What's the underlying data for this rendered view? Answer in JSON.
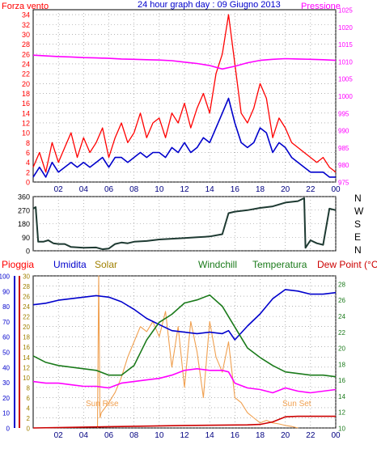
{
  "colors": {
    "red": "#ff0000",
    "blue": "#0000cc",
    "magenta": "#ff00ff",
    "navy": "#000080",
    "green": "#1a7a1a",
    "orange": "#f0a050",
    "olive": "#a08000",
    "darkslate": "#1e3a32",
    "darkred": "#cc0000"
  },
  "top_panel": {
    "left_label": "Forza vento",
    "center_title": "24 hour graph day : 09 Giugno 2013",
    "right_label": "Pressione"
  },
  "middle_panel": {
    "compass": [
      "N",
      "W",
      "S",
      "E",
      "N"
    ]
  },
  "bottom_panel": {
    "labels": {
      "pioggia": "Pioggia",
      "umidita": "Umidita",
      "solar": "Solar",
      "windchill": "Windchill",
      "temperatura": "Temperatura",
      "dewpoint": "Dew Point (°C)"
    },
    "annotations": {
      "sunrise": "Sun Rise",
      "sunset": "Sun Set"
    }
  },
  "chart_data": [
    {
      "type": "line",
      "name": "wind_and_pressure",
      "title": "24 hour graph day : 09 Giugno 2013",
      "x_ticks": [
        "02",
        "04",
        "06",
        "08",
        "10",
        "12",
        "14",
        "16",
        "18",
        "20",
        "22",
        "00"
      ],
      "y_left_ticks": [
        0,
        2,
        4,
        6,
        8,
        10,
        12,
        14,
        16,
        18,
        20,
        22,
        24,
        26,
        28,
        30,
        32,
        34
      ],
      "y_left_range": [
        0,
        35
      ],
      "y_right_ticks": [
        975,
        980,
        985,
        990,
        995,
        1000,
        1005,
        1010,
        1015,
        1020,
        1025
      ],
      "y_right_range": [
        975,
        1025
      ],
      "grid": true,
      "series": [
        {
          "color": "#ff0000",
          "x": [
            0,
            0.5,
            1,
            1.5,
            2,
            2.5,
            3,
            3.5,
            4,
            4.5,
            5,
            5.5,
            6,
            6.5,
            7,
            7.5,
            8,
            8.5,
            9,
            9.5,
            10,
            10.5,
            11,
            11.5,
            12,
            12.5,
            13,
            13.5,
            14,
            14.5,
            15,
            15.5,
            16,
            16.5,
            17,
            17.5,
            18,
            18.5,
            19,
            19.5,
            20,
            20.5,
            21,
            21.5,
            22,
            22.5,
            23,
            23.5,
            24
          ],
          "values": [
            3,
            6,
            2,
            8,
            4,
            7,
            10,
            5,
            9,
            6,
            8,
            11,
            5,
            9,
            12,
            8,
            10,
            14,
            9,
            12,
            13,
            9,
            14,
            12,
            16,
            11,
            15,
            18,
            14,
            22,
            26,
            34,
            24,
            14,
            12,
            15,
            20,
            17,
            9,
            13,
            11,
            8,
            7,
            6,
            5,
            4,
            5,
            3,
            2
          ]
        },
        {
          "color": "#0000cc",
          "x": [
            0,
            0.5,
            1,
            1.5,
            2,
            2.5,
            3,
            3.5,
            4,
            4.5,
            5,
            5.5,
            6,
            6.5,
            7,
            7.5,
            8,
            8.5,
            9,
            9.5,
            10,
            10.5,
            11,
            11.5,
            12,
            12.5,
            13,
            13.5,
            14,
            14.5,
            15,
            15.5,
            16,
            16.5,
            17,
            17.5,
            18,
            18.5,
            19,
            19.5,
            20,
            20.5,
            21,
            21.5,
            22,
            22.5,
            23,
            23.5,
            24
          ],
          "values": [
            1,
            3,
            1,
            4,
            2,
            3,
            4,
            3,
            4,
            3,
            4,
            5,
            3,
            5,
            5,
            4,
            5,
            6,
            5,
            6,
            6,
            5,
            7,
            6,
            8,
            6,
            7,
            9,
            8,
            11,
            14,
            17,
            12,
            8,
            7,
            8,
            11,
            10,
            6,
            8,
            7,
            5,
            4,
            3,
            2,
            2,
            2,
            1,
            1
          ]
        },
        {
          "color": "#ff00ff",
          "x": [
            0,
            1,
            2,
            3,
            4,
            5,
            6,
            7,
            8,
            9,
            10,
            11,
            12,
            13,
            14,
            15,
            16,
            17,
            18,
            19,
            20,
            21,
            22,
            23,
            24
          ],
          "values": [
            1011.8,
            1011.6,
            1011.4,
            1011.3,
            1011.1,
            1011.0,
            1010.9,
            1010.7,
            1010.6,
            1010.5,
            1010.4,
            1010.2,
            1009.8,
            1009.4,
            1008.8,
            1007.8,
            1008.6,
            1009.6,
            1010.3,
            1010.6,
            1010.8,
            1010.7,
            1010.6,
            1010.5,
            1010.3
          ]
        }
      ]
    },
    {
      "type": "line",
      "name": "wind_direction",
      "x_ticks": [
        "02",
        "04",
        "06",
        "08",
        "10",
        "12",
        "14",
        "16",
        "18",
        "20",
        "22",
        "00"
      ],
      "y_ticks": [
        0,
        90,
        180,
        270,
        360
      ],
      "y_range": [
        0,
        360
      ],
      "grid": true,
      "series": [
        {
          "color": "#1e3a32",
          "x": [
            0,
            0.2,
            0.4,
            0.8,
            1.2,
            1.6,
            2,
            2.5,
            3,
            4,
            5,
            5.5,
            6,
            6.5,
            7,
            7.5,
            8,
            9,
            10,
            11,
            12,
            13,
            14,
            15,
            15.5,
            16,
            17,
            18,
            19,
            20,
            21,
            21.5,
            21.6,
            22,
            22.5,
            23,
            23.5,
            24
          ],
          "values": [
            280,
            290,
            60,
            60,
            70,
            50,
            45,
            45,
            25,
            20,
            22,
            10,
            15,
            45,
            55,
            50,
            60,
            65,
            75,
            80,
            85,
            90,
            95,
            110,
            250,
            260,
            270,
            285,
            295,
            320,
            330,
            350,
            20,
            70,
            50,
            40,
            280,
            270
          ]
        }
      ]
    },
    {
      "type": "line",
      "name": "rain_humidity_solar_temperature",
      "x_ticks": [
        "02",
        "04",
        "06",
        "08",
        "10",
        "12",
        "14",
        "16",
        "18",
        "20",
        "22",
        "00"
      ],
      "y_far_left_ticks": [
        0,
        10,
        20,
        30,
        40,
        50,
        60,
        70,
        80,
        90,
        100
      ],
      "y_left_ticks": [
        0,
        2,
        4,
        6,
        8,
        10,
        12,
        14,
        16,
        18,
        20,
        22,
        24,
        26,
        28,
        30
      ],
      "y_right_ticks": [
        10,
        12,
        14,
        16,
        18,
        20,
        22,
        24,
        26,
        28
      ],
      "y_temperature_range": [
        10,
        29
      ],
      "y_humidity_range": [
        0,
        100
      ],
      "grid": true,
      "series": [
        {
          "color": "#0000cc",
          "x": [
            0,
            1,
            2,
            3,
            4,
            5,
            6,
            7,
            8,
            9,
            10,
            11,
            12,
            13,
            14,
            15,
            15.5,
            16,
            17,
            18,
            19,
            20,
            21,
            22,
            23,
            24
          ],
          "values": [
            81,
            82,
            84,
            85,
            86,
            87,
            86,
            83,
            78,
            72,
            68,
            64,
            63,
            62,
            63,
            62,
            64,
            58,
            67,
            75,
            85,
            91,
            90,
            88,
            88,
            89
          ]
        },
        {
          "color": "#1a7a1a",
          "x": [
            0,
            1,
            2,
            3,
            4,
            5,
            6,
            7,
            8,
            9,
            10,
            11,
            12,
            13,
            14,
            15,
            16,
            17,
            18,
            19,
            20,
            21,
            22,
            23,
            24
          ],
          "values": [
            19,
            18.2,
            17.8,
            17.6,
            17.4,
            17.2,
            16.6,
            16.6,
            17.8,
            21,
            23.2,
            24.2,
            25.6,
            26,
            26.6,
            25.2,
            22.6,
            20,
            18.8,
            17.8,
            17,
            16.8,
            16.6,
            16.6,
            16.4
          ]
        },
        {
          "color": "#ff00ff",
          "x": [
            0,
            1,
            2,
            3,
            4,
            5,
            6,
            7,
            8,
            9,
            10,
            11,
            12,
            13,
            14,
            15,
            15.5,
            16,
            17,
            18,
            19,
            20,
            21,
            22,
            23,
            24
          ],
          "values": [
            15.8,
            15.6,
            15.6,
            15.4,
            15.2,
            15.2,
            15.0,
            15.6,
            15.8,
            16.0,
            16.2,
            16.6,
            17.2,
            17.4,
            17.2,
            17.2,
            17.0,
            15.6,
            15.0,
            14.8,
            14.4,
            15.0,
            14.6,
            14.4,
            14.6,
            14.8
          ]
        },
        {
          "color": "#f0a050",
          "x": [
            5.1,
            5.2,
            5.3,
            5.4,
            6,
            6.5,
            7,
            7.5,
            8,
            8.5,
            9,
            9.5,
            10,
            10.5,
            11,
            11.5,
            12,
            12.5,
            13,
            13.5,
            14,
            14.5,
            15,
            15.5,
            16,
            16.5,
            17,
            17.5,
            18,
            18.5,
            19,
            19.5,
            20,
            20.5,
            21
          ],
          "values": [
            0,
            30,
            2,
            3,
            5,
            7,
            10,
            14,
            17,
            20,
            19,
            21,
            18,
            23,
            12,
            20,
            8,
            21,
            15,
            6,
            21,
            14,
            11,
            17,
            6,
            5,
            3,
            2,
            1,
            1.5,
            1,
            0.8,
            0.5,
            0.3,
            0
          ]
        },
        {
          "color": "#cc0000",
          "x": [
            0,
            12,
            17,
            18,
            19,
            20,
            21,
            22,
            23,
            24
          ],
          "values": [
            0,
            0.5,
            0.6,
            0.7,
            1.2,
            2.2,
            2.3,
            2.3,
            2.3,
            2.3
          ]
        }
      ]
    }
  ]
}
